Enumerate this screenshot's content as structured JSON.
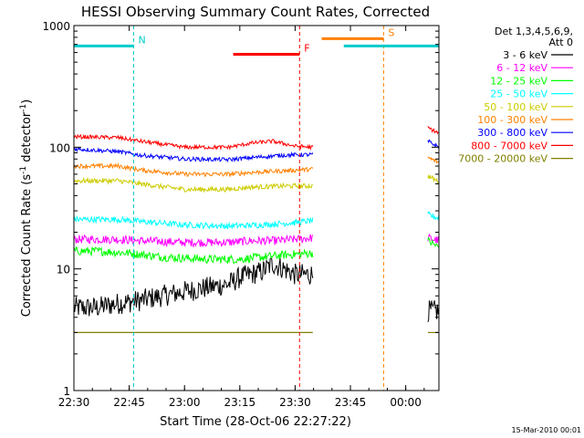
{
  "chart_data": {
    "type": "line",
    "title": "HESSI Observing Summary Count Rates, Corrected",
    "xlabel": "Start Time (28-Oct-06 22:27:22)",
    "ylabel_main": "Corrected Count Rate (s",
    "ylabel_sup1": "-1",
    "ylabel_mid": " detector",
    "ylabel_sup2": "-1",
    "ylabel_end": ")",
    "yscale": "log",
    "ylim": [
      1,
      1000
    ],
    "xlim": [
      22.5,
      24.15
    ],
    "x_ticks": [
      {
        "v": 22.5,
        "label": "22:30"
      },
      {
        "v": 22.75,
        "label": "22:45"
      },
      {
        "v": 23.0,
        "label": "23:00"
      },
      {
        "v": 23.25,
        "label": "23:15"
      },
      {
        "v": 23.5,
        "label": "23:30"
      },
      {
        "v": 23.75,
        "label": "23:45"
      },
      {
        "v": 24.0,
        "label": "00:00"
      }
    ],
    "y_ticks": [
      {
        "v": 1,
        "label": "1"
      },
      {
        "v": 10,
        "label": "10"
      },
      {
        "v": 100,
        "label": "100"
      },
      {
        "v": 1000,
        "label": "1000"
      }
    ],
    "legend_header": [
      "Det 1,3,4,5,6,9,",
      "Att 0"
    ],
    "legend_position": "right",
    "grid": false,
    "series": [
      {
        "name": "3 - 6 keV",
        "color": "#000000",
        "data_pre": [
          [
            22.5,
            4.8
          ],
          [
            22.6,
            4.8
          ],
          [
            22.7,
            5.2
          ],
          [
            22.8,
            5.5
          ],
          [
            22.9,
            6.0
          ],
          [
            23.0,
            6.5
          ],
          [
            23.1,
            7.0
          ],
          [
            23.2,
            7.5
          ],
          [
            23.25,
            8.5
          ],
          [
            23.3,
            9.0
          ],
          [
            23.35,
            9.5
          ],
          [
            23.4,
            11.0
          ],
          [
            23.45,
            10.0
          ],
          [
            23.5,
            9.0
          ],
          [
            23.58,
            9.0
          ]
        ],
        "data_post": [
          [
            24.1,
            4.5
          ],
          [
            24.15,
            4.5
          ]
        ],
        "noise": 0.09
      },
      {
        "name": "6 - 12 keV",
        "color": "#ff00ff",
        "data_pre": [
          [
            22.5,
            17.5
          ],
          [
            22.7,
            17.5
          ],
          [
            22.8,
            17.0
          ],
          [
            23.0,
            16.5
          ],
          [
            23.2,
            16.5
          ],
          [
            23.3,
            17.0
          ],
          [
            23.4,
            17.0
          ],
          [
            23.5,
            17.5
          ],
          [
            23.58,
            18.0
          ]
        ],
        "data_post": [
          [
            24.1,
            18.0
          ],
          [
            24.15,
            17.0
          ]
        ],
        "noise": 0.035
      },
      {
        "name": "12 - 25 keV",
        "color": "#00ff00",
        "data_pre": [
          [
            22.5,
            14.0
          ],
          [
            22.6,
            14.0
          ],
          [
            22.75,
            13.5
          ],
          [
            22.9,
            12.5
          ],
          [
            23.1,
            12.0
          ],
          [
            23.25,
            12.0
          ],
          [
            23.35,
            12.5
          ],
          [
            23.45,
            13.0
          ],
          [
            23.58,
            13.5
          ]
        ],
        "data_post": [
          [
            24.1,
            17.0
          ],
          [
            24.15,
            15.0
          ]
        ],
        "noise": 0.035
      },
      {
        "name": "25 - 50 keV",
        "color": "#00ffff",
        "data_pre": [
          [
            22.5,
            25.5
          ],
          [
            22.7,
            25.5
          ],
          [
            22.8,
            24.5
          ],
          [
            23.0,
            23.0
          ],
          [
            23.2,
            22.5
          ],
          [
            23.35,
            23.0
          ],
          [
            23.5,
            24.0
          ],
          [
            23.58,
            25.0
          ]
        ],
        "data_post": [
          [
            24.1,
            28.0
          ],
          [
            24.15,
            26.0
          ]
        ],
        "noise": 0.025
      },
      {
        "name": "50 - 100 keV",
        "color": "#cccc00",
        "data_pre": [
          [
            22.5,
            53.0
          ],
          [
            22.7,
            53.0
          ],
          [
            22.8,
            50.0
          ],
          [
            23.0,
            45.0
          ],
          [
            23.2,
            45.0
          ],
          [
            23.3,
            47.0
          ],
          [
            23.45,
            48.0
          ],
          [
            23.58,
            48.0
          ]
        ],
        "data_post": [
          [
            24.1,
            58.0
          ],
          [
            24.15,
            52.0
          ]
        ],
        "noise": 0.02
      },
      {
        "name": "100 - 300 keV",
        "color": "#ff8000",
        "data_pre": [
          [
            22.5,
            70.0
          ],
          [
            22.7,
            70.0
          ],
          [
            22.8,
            65.0
          ],
          [
            23.0,
            60.0
          ],
          [
            23.2,
            60.0
          ],
          [
            23.3,
            62.0
          ],
          [
            23.45,
            64.0
          ],
          [
            23.58,
            66.0
          ]
        ],
        "data_post": [
          [
            24.1,
            82.0
          ],
          [
            24.15,
            75.0
          ]
        ],
        "noise": 0.018
      },
      {
        "name": "300 - 800 keV",
        "color": "#0000ff",
        "data_pre": [
          [
            22.5,
            97.0
          ],
          [
            22.7,
            92.0
          ],
          [
            22.8,
            86.0
          ],
          [
            23.0,
            80.0
          ],
          [
            23.2,
            79.0
          ],
          [
            23.3,
            82.0
          ],
          [
            23.45,
            86.0
          ],
          [
            23.58,
            87.0
          ]
        ],
        "data_post": [
          [
            24.1,
            112.0
          ],
          [
            24.15,
            100.0
          ]
        ],
        "noise": 0.017
      },
      {
        "name": "800 - 7000 keV",
        "color": "#ff0000",
        "data_pre": [
          [
            22.5,
            122.0
          ],
          [
            22.7,
            120.0
          ],
          [
            22.8,
            112.0
          ],
          [
            23.0,
            100.0
          ],
          [
            23.2,
            100.0
          ],
          [
            23.3,
            108.0
          ],
          [
            23.4,
            112.0
          ],
          [
            23.5,
            102.0
          ],
          [
            23.58,
            100.0
          ]
        ],
        "data_post": [
          [
            24.1,
            145.0
          ],
          [
            24.15,
            130.0
          ]
        ],
        "noise": 0.016
      },
      {
        "name": "7000 - 20000 keV",
        "color": "#808000",
        "data_pre": [
          [
            22.5,
            3.0
          ],
          [
            23.58,
            3.0
          ]
        ],
        "data_post": [
          [
            24.1,
            3.0
          ],
          [
            24.15,
            3.0
          ]
        ],
        "noise": 0.0
      }
    ],
    "annotations": [
      {
        "label": "N",
        "color": "#00cccc",
        "x_start": 22.5,
        "x_end": 22.77,
        "y": 680
      },
      {
        "label": "F",
        "color": "#ff0000",
        "x_start": 23.22,
        "x_end": 23.52,
        "y": 580
      },
      {
        "label": "S",
        "color": "#ff8000",
        "x_start": 23.62,
        "x_end": 23.9,
        "y": 780
      },
      {
        "label": "",
        "color": "#00cccc",
        "x_start": 23.72,
        "x_end": 24.15,
        "y": 680
      }
    ],
    "footer_date": "15-Mar-2010 00:01"
  }
}
